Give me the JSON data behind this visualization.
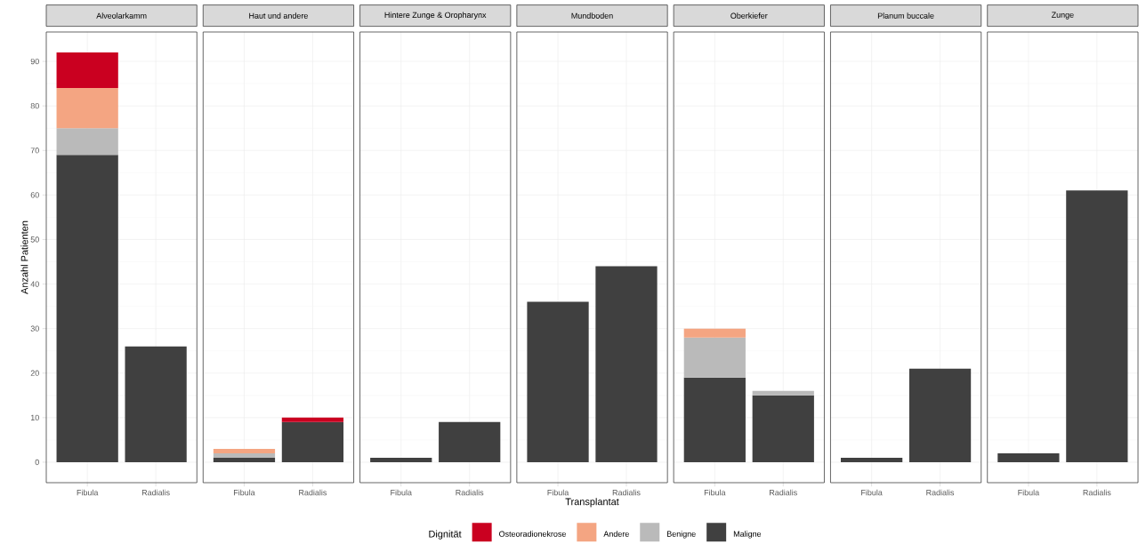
{
  "chart_data": [
    {
      "type": "bar",
      "title": "Alveolarkamm",
      "ylabel": "Anzahl Patienten",
      "legend": "bottom",
      "legend_title": "Dignität",
      "stacked": true,
      "grid": true,
      "ylim": [
        -4.6,
        96.6
      ],
      "yticks": [
        0,
        10,
        20,
        30,
        40,
        50,
        60,
        70,
        80,
        90
      ],
      "categories": [
        "Fibula",
        "Radialis"
      ],
      "series": [
        {
          "name": "Maligne",
          "color": "#404040",
          "values": [
            69,
            26
          ]
        },
        {
          "name": "Benigne",
          "color": "#bababa",
          "values": [
            6,
            null
          ]
        },
        {
          "name": "Andere",
          "color": "#f4a582",
          "values": [
            9,
            null
          ]
        },
        {
          "name": "Osteoradionekrose",
          "color": "#ca0020",
          "values": [
            8,
            null
          ]
        }
      ]
    },
    {
      "type": "bar",
      "title": "Haut und andere",
      "stacked": true,
      "grid": true,
      "tick_labels": "x",
      "ylim": [
        -4.6,
        96.6
      ],
      "yticks": [
        0,
        10,
        20,
        30,
        40,
        50,
        60,
        70,
        80,
        90
      ],
      "categories": [
        "Fibula",
        "Radialis"
      ],
      "series": [
        {
          "color": "#404040",
          "values": [
            1,
            9
          ]
        },
        {
          "color": "#bababa",
          "values": [
            1,
            null
          ]
        },
        {
          "color": "#f4a582",
          "values": [
            1,
            null
          ]
        },
        {
          "color": "#ca0020",
          "values": [
            null,
            1
          ]
        }
      ]
    },
    {
      "type": "bar",
      "title": "Hintere Zunge & Oropharynx",
      "stacked": true,
      "grid": true,
      "tick_labels": "x",
      "ylim": [
        -4.6,
        96.6
      ],
      "yticks": [
        0,
        10,
        20,
        30,
        40,
        50,
        60,
        70,
        80,
        90
      ],
      "categories": [
        "Fibula",
        "Radialis"
      ],
      "series": [
        {
          "color": "#404040",
          "values": [
            1,
            9
          ]
        }
      ]
    },
    {
      "type": "bar",
      "title": "Mundboden",
      "xlabel": "Transplantat",
      "stacked": true,
      "grid": true,
      "tick_labels": "x",
      "ylim": [
        -4.6,
        96.6
      ],
      "yticks": [
        0,
        10,
        20,
        30,
        40,
        50,
        60,
        70,
        80,
        90
      ],
      "categories": [
        "Fibula",
        "Radialis"
      ],
      "series": [
        {
          "color": "#404040",
          "values": [
            36,
            44
          ]
        }
      ]
    },
    {
      "type": "bar",
      "title": "Oberkiefer",
      "stacked": true,
      "grid": true,
      "tick_labels": "x",
      "ylim": [
        -4.6,
        96.6
      ],
      "yticks": [
        0,
        10,
        20,
        30,
        40,
        50,
        60,
        70,
        80,
        90
      ],
      "categories": [
        "Fibula",
        "Radialis"
      ],
      "series": [
        {
          "color": "#404040",
          "values": [
            19,
            15
          ]
        },
        {
          "color": "#bababa",
          "values": [
            9,
            1
          ]
        },
        {
          "color": "#f4a582",
          "values": [
            2,
            null
          ]
        }
      ]
    },
    {
      "type": "bar",
      "title": "Planum buccale",
      "stacked": true,
      "grid": true,
      "tick_labels": "x",
      "ylim": [
        -4.6,
        96.6
      ],
      "yticks": [
        0,
        10,
        20,
        30,
        40,
        50,
        60,
        70,
        80,
        90
      ],
      "categories": [
        "Fibula",
        "Radialis"
      ],
      "series": [
        {
          "color": "#404040",
          "values": [
            1,
            21
          ]
        }
      ]
    },
    {
      "type": "bar",
      "title": "Zunge",
      "stacked": true,
      "grid": true,
      "tick_labels": "x",
      "ylim": [
        -4.6,
        96.6
      ],
      "yticks": [
        0,
        10,
        20,
        30,
        40,
        50,
        60,
        70,
        80,
        90
      ],
      "categories": [
        "Fibula",
        "Radialis"
      ],
      "series": [
        {
          "color": "#404040",
          "values": [
            2,
            61
          ]
        }
      ]
    }
  ]
}
